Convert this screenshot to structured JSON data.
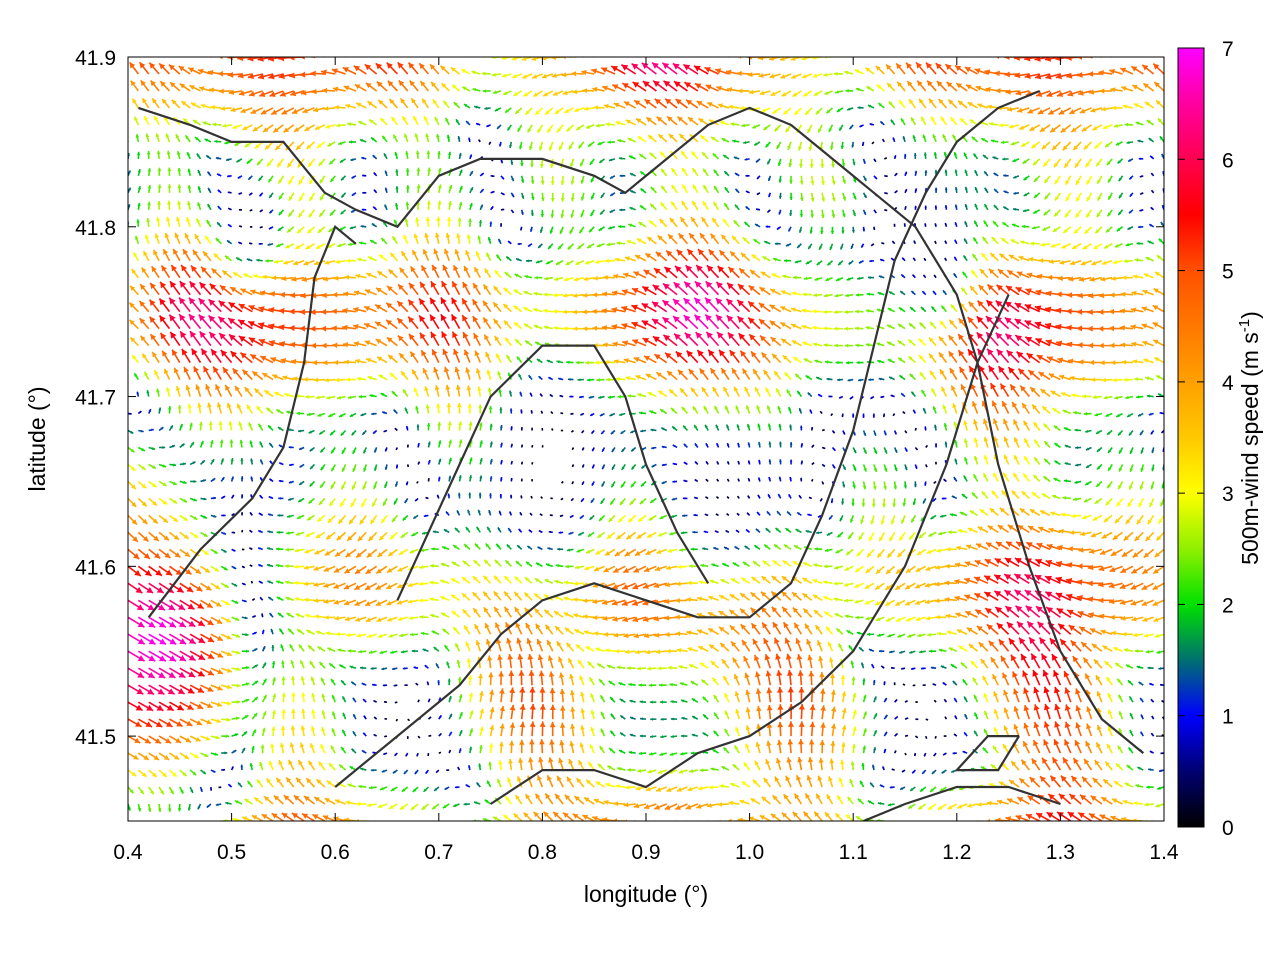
{
  "chart_data": {
    "type": "vector-field",
    "title": "",
    "xlabel": "longitude (°)",
    "ylabel": "latitude (°)",
    "colorbar_label_main": "500m-wind speed (m s",
    "colorbar_label_sup": "-1",
    "colorbar_label_end": ")",
    "xlim": [
      0.4,
      1.4
    ],
    "ylim": [
      41.45,
      41.9
    ],
    "x_ticks": [
      0.4,
      0.5,
      0.6,
      0.7,
      0.8,
      0.9,
      1.0,
      1.1,
      1.2,
      1.3,
      1.4
    ],
    "x_tick_labels": [
      "0.4",
      "0.5",
      "0.6",
      "0.7",
      "0.8",
      "0.9",
      "1.0",
      "1.1",
      "1.2",
      "1.3",
      "1.4"
    ],
    "y_ticks": [
      41.5,
      41.6,
      41.7,
      41.8,
      41.9
    ],
    "y_tick_labels": [
      "41.5",
      "41.6",
      "41.7",
      "41.8",
      "41.9"
    ],
    "colorbar": {
      "range": [
        0,
        7
      ],
      "ticks": [
        0,
        1,
        2,
        3,
        4,
        5,
        6,
        7
      ],
      "tick_labels": [
        "0",
        "1",
        "2",
        "3",
        "4",
        "5",
        "6",
        "7"
      ],
      "stops": [
        {
          "value": 0.0,
          "color": "#000000"
        },
        {
          "value": 0.5,
          "color": "#000070"
        },
        {
          "value": 1.0,
          "color": "#0000ff"
        },
        {
          "value": 1.5,
          "color": "#007070"
        },
        {
          "value": 2.0,
          "color": "#00e000"
        },
        {
          "value": 2.5,
          "color": "#90f000"
        },
        {
          "value": 3.0,
          "color": "#ffff00"
        },
        {
          "value": 3.5,
          "color": "#ffc800"
        },
        {
          "value": 4.0,
          "color": "#ffa000"
        },
        {
          "value": 5.0,
          "color": "#ff5000"
        },
        {
          "value": 5.5,
          "color": "#ff0000"
        },
        {
          "value": 6.0,
          "color": "#ff0050"
        },
        {
          "value": 6.5,
          "color": "#ff00a0"
        },
        {
          "value": 7.0,
          "color": "#ff00ff"
        }
      ]
    },
    "grid": false,
    "grid_spacing_deg": 0.01,
    "wind_field_components": {
      "background_flow": {
        "u": -2.2,
        "v": 1.2
      },
      "southwest_jet": {
        "center": [
          0.42,
          41.56
        ],
        "spread_deg": 0.12,
        "u": 6.0,
        "v": -3.5
      },
      "calm_centers": [
        {
          "center": [
            0.8,
            41.66
          ],
          "radius_deg": 0.07
        },
        {
          "center": [
            0.98,
            41.64
          ],
          "radius_deg": 0.06
        },
        {
          "center": [
            1.18,
            41.78
          ],
          "radius_deg": 0.05
        },
        {
          "center": [
            0.52,
            41.8
          ],
          "radius_deg": 0.03
        }
      ]
    },
    "coastlines": [
      [
        [
          0.41,
          41.87
        ],
        [
          0.46,
          41.86
        ],
        [
          0.5,
          41.85
        ],
        [
          0.55,
          41.85
        ],
        [
          0.59,
          41.82
        ],
        [
          0.62,
          41.81
        ],
        [
          0.66,
          41.8
        ],
        [
          0.7,
          41.83
        ],
        [
          0.74,
          41.84
        ],
        [
          0.8,
          41.84
        ],
        [
          0.85,
          41.83
        ],
        [
          0.88,
          41.82
        ],
        [
          0.92,
          41.84
        ],
        [
          0.96,
          41.86
        ],
        [
          1.0,
          41.87
        ],
        [
          1.04,
          41.86
        ],
        [
          1.08,
          41.84
        ],
        [
          1.12,
          41.82
        ],
        [
          1.16,
          41.8
        ],
        [
          1.2,
          41.76
        ],
        [
          1.22,
          41.72
        ],
        [
          1.24,
          41.66
        ],
        [
          1.27,
          41.6
        ],
        [
          1.3,
          41.55
        ],
        [
          1.34,
          41.51
        ],
        [
          1.38,
          41.49
        ]
      ],
      [
        [
          0.42,
          41.57
        ],
        [
          0.47,
          41.61
        ],
        [
          0.52,
          41.64
        ],
        [
          0.55,
          41.67
        ],
        [
          0.57,
          41.72
        ],
        [
          0.58,
          41.77
        ],
        [
          0.6,
          41.8
        ],
        [
          0.62,
          41.79
        ]
      ],
      [
        [
          0.6,
          41.47
        ],
        [
          0.66,
          41.5
        ],
        [
          0.72,
          41.53
        ],
        [
          0.76,
          41.56
        ],
        [
          0.8,
          41.58
        ],
        [
          0.85,
          41.59
        ],
        [
          0.9,
          41.58
        ],
        [
          0.95,
          41.57
        ],
        [
          1.0,
          41.57
        ],
        [
          1.04,
          41.59
        ],
        [
          1.07,
          41.63
        ],
        [
          1.1,
          41.68
        ],
        [
          1.12,
          41.73
        ],
        [
          1.14,
          41.78
        ],
        [
          1.17,
          41.82
        ],
        [
          1.2,
          41.85
        ],
        [
          1.24,
          41.87
        ],
        [
          1.28,
          41.88
        ]
      ],
      [
        [
          0.75,
          41.46
        ],
        [
          0.8,
          41.48
        ],
        [
          0.85,
          41.48
        ],
        [
          0.9,
          41.47
        ],
        [
          0.95,
          41.49
        ],
        [
          1.0,
          41.5
        ],
        [
          1.05,
          41.52
        ],
        [
          1.1,
          41.55
        ],
        [
          1.15,
          41.6
        ],
        [
          1.19,
          41.66
        ],
        [
          1.22,
          41.72
        ],
        [
          1.25,
          41.76
        ]
      ],
      [
        [
          0.66,
          41.58
        ],
        [
          0.69,
          41.62
        ],
        [
          0.72,
          41.66
        ],
        [
          0.75,
          41.7
        ],
        [
          0.8,
          41.73
        ],
        [
          0.85,
          41.73
        ],
        [
          0.88,
          41.7
        ],
        [
          0.9,
          41.66
        ],
        [
          0.93,
          41.62
        ],
        [
          0.96,
          41.59
        ]
      ],
      [
        [
          1.11,
          41.45
        ],
        [
          1.15,
          41.46
        ],
        [
          1.2,
          41.47
        ],
        [
          1.25,
          41.47
        ],
        [
          1.3,
          41.46
        ]
      ],
      [
        [
          1.26,
          41.5
        ],
        [
          1.24,
          41.48
        ],
        [
          1.2,
          41.48
        ],
        [
          1.23,
          41.5
        ],
        [
          1.26,
          41.5
        ]
      ]
    ]
  }
}
